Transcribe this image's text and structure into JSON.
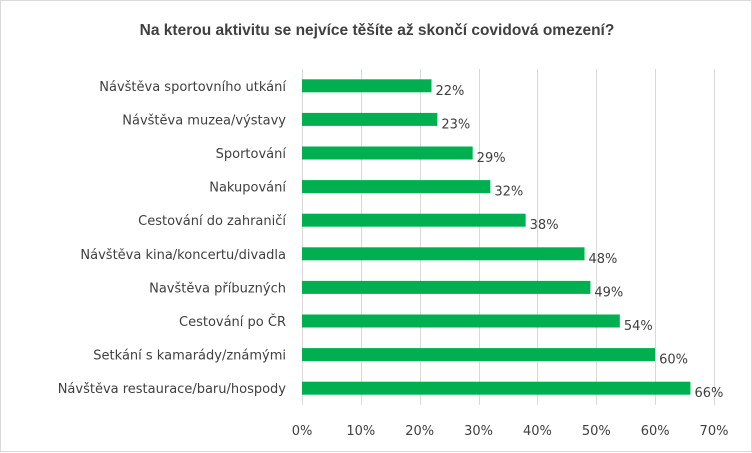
{
  "chart_data": {
    "type": "bar",
    "orientation": "horizontal",
    "title": "Na kterou aktivitu se nejvíce těšíte  až skončí covidová omezení?",
    "categories": [
      "Návštěva sportovního utkání",
      "Návštěva muzea/výstavy",
      "Sportování",
      "Nakupování",
      "Cestování do zahraničí",
      "Návštěva kina/koncertu/divadla",
      "Navštěva příbuzných",
      "Cestování po ČR",
      "Setkání s kamarády/známými",
      "Návštěva restaurace/baru/hospody"
    ],
    "values": [
      22,
      23,
      29,
      32,
      38,
      48,
      49,
      54,
      60,
      66
    ],
    "value_labels": [
      "22%",
      "23%",
      "29%",
      "32%",
      "38%",
      "48%",
      "49%",
      "54%",
      "60%",
      "66%"
    ],
    "xlim": [
      0,
      70
    ],
    "xticks": [
      0,
      10,
      20,
      30,
      40,
      50,
      60,
      70
    ],
    "xtick_labels": [
      "0%",
      "10%",
      "20%",
      "30%",
      "40%",
      "50%",
      "60%",
      "70%"
    ],
    "xlabel": "",
    "ylabel": "",
    "grid": "vertical",
    "legend": "none",
    "bar_color": "#00b050"
  }
}
